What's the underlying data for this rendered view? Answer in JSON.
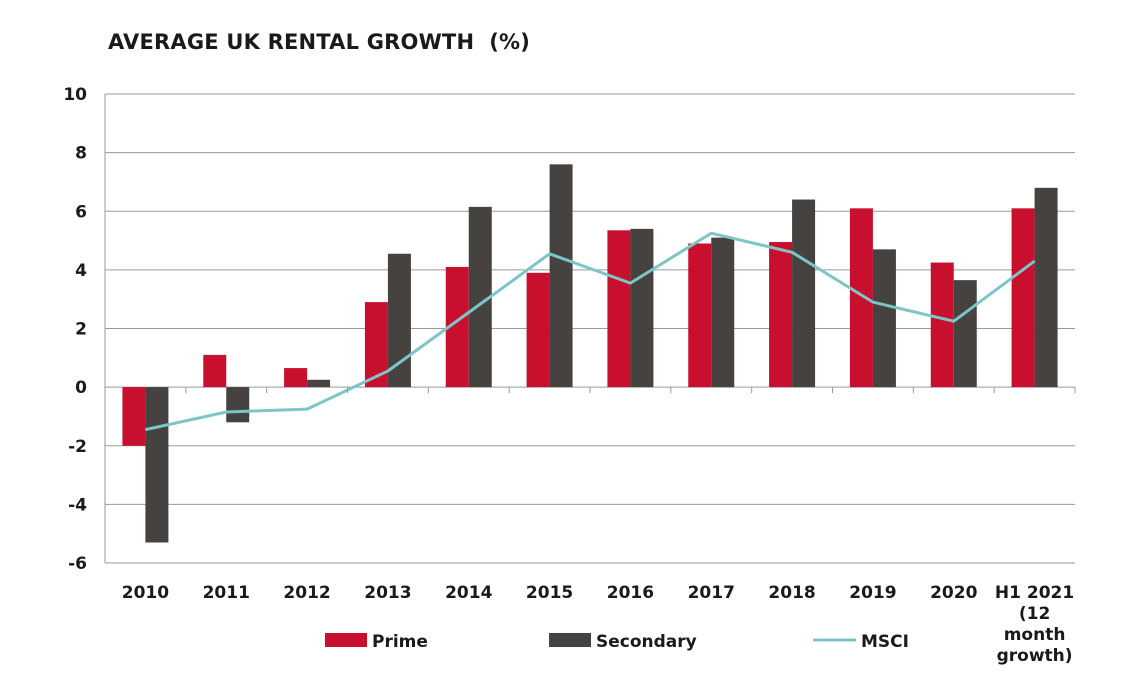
{
  "chart_data": {
    "type": "bar",
    "title": "AVERAGE UK RENTAL GROWTH  (%)",
    "categories": [
      "2010",
      "2011",
      "2012",
      "2013",
      "2014",
      "2015",
      "2016",
      "2017",
      "2018",
      "2019",
      "2020",
      "H1 2021 (12 month growth)"
    ],
    "category_lines": [
      [
        "2010"
      ],
      [
        "2011"
      ],
      [
        "2012"
      ],
      [
        "2013"
      ],
      [
        "2014"
      ],
      [
        "2015"
      ],
      [
        "2016"
      ],
      [
        "2017"
      ],
      [
        "2018"
      ],
      [
        "2019"
      ],
      [
        "2020"
      ],
      [
        "H1 2021",
        "(12",
        "month",
        "growth)"
      ]
    ],
    "series": [
      {
        "name": "Prime",
        "kind": "bar",
        "color": "#c8102e",
        "values": [
          -2.0,
          1.1,
          0.65,
          2.9,
          4.1,
          3.9,
          5.35,
          4.9,
          4.95,
          6.1,
          4.25,
          6.1
        ]
      },
      {
        "name": "Secondary",
        "kind": "bar",
        "color": "#454240",
        "values": [
          -5.3,
          -1.2,
          0.25,
          4.55,
          6.15,
          7.6,
          5.4,
          5.1,
          6.4,
          4.7,
          3.65,
          6.8
        ]
      },
      {
        "name": "MSCI",
        "kind": "line",
        "color": "#7cc6c8",
        "values": [
          -1.45,
          -0.85,
          -0.75,
          0.55,
          2.55,
          4.55,
          3.55,
          5.25,
          4.6,
          2.9,
          2.25,
          4.3
        ]
      }
    ],
    "ylim": [
      -6,
      10
    ],
    "yticks": [
      10,
      8,
      6,
      4,
      2,
      0,
      -2,
      -4,
      -6
    ],
    "grid": true,
    "legend": "bottom",
    "xlabel": "",
    "ylabel": ""
  }
}
